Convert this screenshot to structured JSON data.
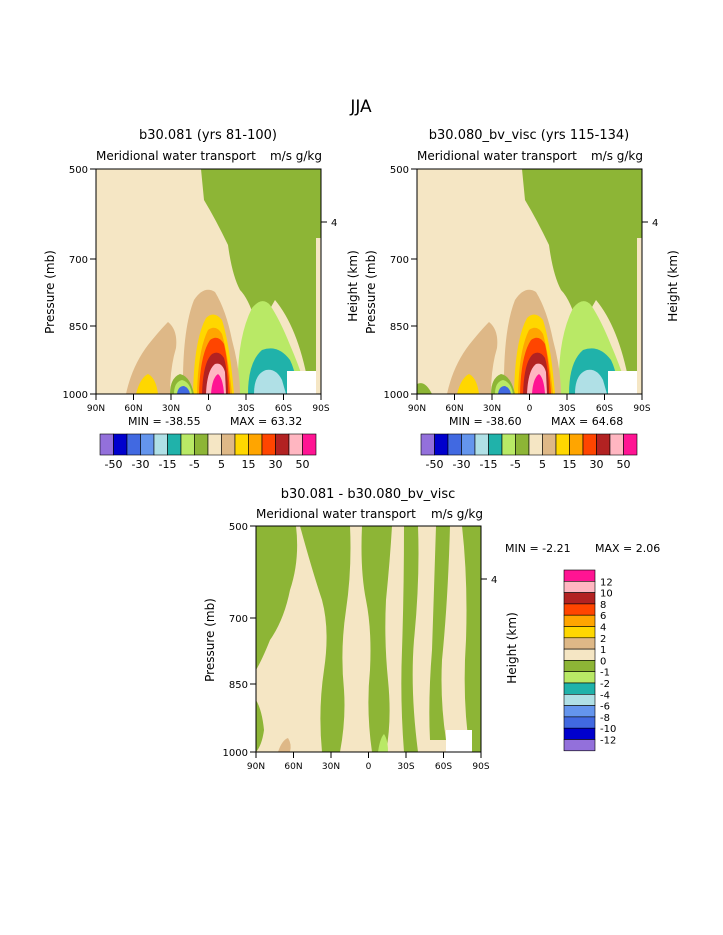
{
  "page": {
    "title": "JJA"
  },
  "chart_data": [
    {
      "type": "heatmap",
      "id": "p1",
      "title": "b30.081 (yrs 81-100)",
      "subtitle": "Meridional water transport",
      "units": "m/s g/kg",
      "ylabel": "Pressure (mb)",
      "ylabel_right": "Height (km)",
      "x_ticks": [
        "90N",
        "60N",
        "30N",
        "0",
        "30S",
        "60S",
        "90S"
      ],
      "y_ticks": [
        "500",
        "700",
        "850",
        "1000"
      ],
      "y_right_ticks": [
        "4"
      ],
      "min_text": "MIN = -38.55",
      "max_text": "MAX = 63.32",
      "min": -38.55,
      "max": 63.32
    },
    {
      "type": "heatmap",
      "id": "p2",
      "title": "b30.080_bv_visc (yrs 115-134)",
      "subtitle": "Meridional water transport",
      "units": "m/s g/kg",
      "ylabel": "Pressure (mb)",
      "ylabel_right": "Height (km)",
      "x_ticks": [
        "90N",
        "60N",
        "30N",
        "0",
        "30S",
        "60S",
        "90S"
      ],
      "y_ticks": [
        "500",
        "700",
        "850",
        "1000"
      ],
      "y_right_ticks": [
        "4"
      ],
      "min_text": "MIN = -38.60",
      "max_text": "MAX = 64.68",
      "min": -38.6,
      "max": 64.68
    },
    {
      "type": "heatmap",
      "id": "p3",
      "title": "b30.081 - b30.080_bv_visc",
      "subtitle": "Meridional water transport",
      "units": "m/s g/kg",
      "ylabel": "Pressure (mb)",
      "ylabel_right": "Height (km)",
      "x_ticks": [
        "90N",
        "60N",
        "30N",
        "0",
        "30S",
        "60S",
        "90S"
      ],
      "y_ticks": [
        "500",
        "700",
        "850",
        "1000"
      ],
      "y_right_ticks": [
        "4"
      ],
      "min_text": "MIN = -2.21",
      "max_text": "MAX = 2.06",
      "min": -2.21,
      "max": 2.06
    }
  ],
  "colorbar_top": {
    "labels": [
      "-50",
      "-30",
      "-15",
      "-5",
      "5",
      "15",
      "30",
      "50"
    ],
    "colors": [
      "#9370db",
      "#0000cd",
      "#4169e1",
      "#6495ed",
      "#b0e0e6",
      "#20b2aa",
      "#b9e966",
      "#8db536",
      "#f5e6c4",
      "#deb887",
      "#ffd700",
      "#ffa500",
      "#ff4500",
      "#b22222",
      "#ffb6c1",
      "#ff1493"
    ]
  },
  "colorbar_diff": {
    "labels": [
      "12",
      "10",
      "8",
      "6",
      "4",
      "2",
      "1",
      "0",
      "-1",
      "-2",
      "-4",
      "-6",
      "-8",
      "-10",
      "-12"
    ],
    "colors": [
      "#ff1493",
      "#ffb6c1",
      "#b22222",
      "#ff4500",
      "#ffa500",
      "#ffd700",
      "#deb887",
      "#f5e6c4",
      "#8db536",
      "#b9e966",
      "#20b2aa",
      "#b0e0e6",
      "#6495ed",
      "#4169e1",
      "#0000cd",
      "#9370db"
    ]
  }
}
